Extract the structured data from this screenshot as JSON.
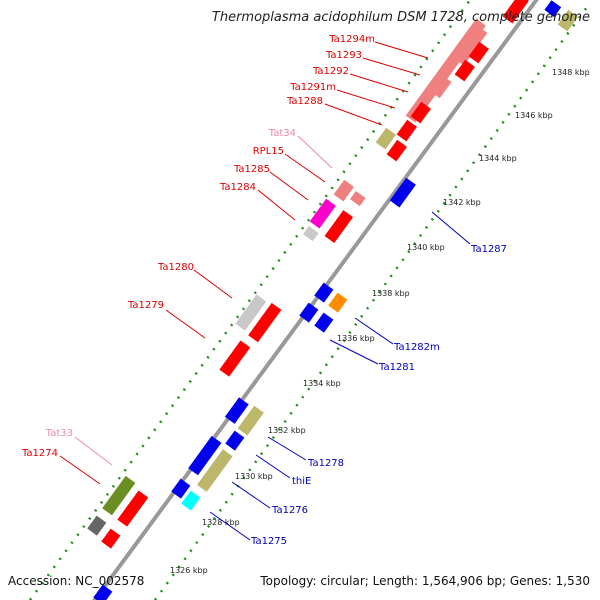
{
  "title": "Thermoplasma acidophilum DSM 1728, complete genome",
  "footer": {
    "accession_label": "Accession: NC_002578",
    "topology_label": "Topology: circular; Length: 1,564,906 bp; Genes: 1,530"
  },
  "colors": {
    "backbone": "#999999",
    "tick_dots": "#228b22",
    "label_red": "#dd0000",
    "label_blue": "#0000bb",
    "label_pink": "#ee88aa",
    "gene_red": "#ff0000",
    "gene_salmon": "#f08080",
    "gene_blue": "#0000ee",
    "gene_khaki": "#bdb76b",
    "gene_gray": "#c8c8c8",
    "gene_darkgray": "#666666",
    "gene_magenta": "#ff00cc",
    "gene_cyan": "#00ffff",
    "gene_olive": "#6b8e23",
    "gene_orange": "#ff8c00",
    "gene_pink": "#ffb0c0"
  },
  "ticks": [
    {
      "label": "1326 kbp"
    },
    {
      "label": "1328 kbp"
    },
    {
      "label": "1330 kbp"
    },
    {
      "label": "1332 kbp"
    },
    {
      "label": "1334 kbp"
    },
    {
      "label": "1336 kbp"
    },
    {
      "label": "1338 kbp"
    },
    {
      "label": "1340 kbp"
    },
    {
      "label": "1342 kbp"
    },
    {
      "label": "1344 kbp"
    },
    {
      "label": "1346 kbp"
    },
    {
      "label": "1348 kbp"
    }
  ],
  "gene_labels_left": [
    {
      "text": "Ta1294m",
      "color": "red"
    },
    {
      "text": "Ta1293",
      "color": "red"
    },
    {
      "text": "Ta1292",
      "color": "red"
    },
    {
      "text": "Ta1291m",
      "color": "red"
    },
    {
      "text": "Ta1288",
      "color": "red"
    },
    {
      "text": "Tat34",
      "color": "pink"
    },
    {
      "text": "RPL15",
      "color": "red"
    },
    {
      "text": "Ta1285",
      "color": "red"
    },
    {
      "text": "Ta1284",
      "color": "red"
    },
    {
      "text": "Ta1280",
      "color": "red"
    },
    {
      "text": "Ta1279",
      "color": "red"
    },
    {
      "text": "Tat33",
      "color": "pink"
    },
    {
      "text": "Ta1274",
      "color": "red"
    }
  ],
  "gene_labels_right": [
    {
      "text": "Ta1287",
      "color": "blue"
    },
    {
      "text": "Ta1282m",
      "color": "blue"
    },
    {
      "text": "Ta1281",
      "color": "blue"
    },
    {
      "text": "Ta1278",
      "color": "blue"
    },
    {
      "text": "thiE",
      "color": "blue"
    },
    {
      "text": "Ta1276",
      "color": "blue"
    },
    {
      "text": "Ta1275",
      "color": "blue"
    }
  ]
}
